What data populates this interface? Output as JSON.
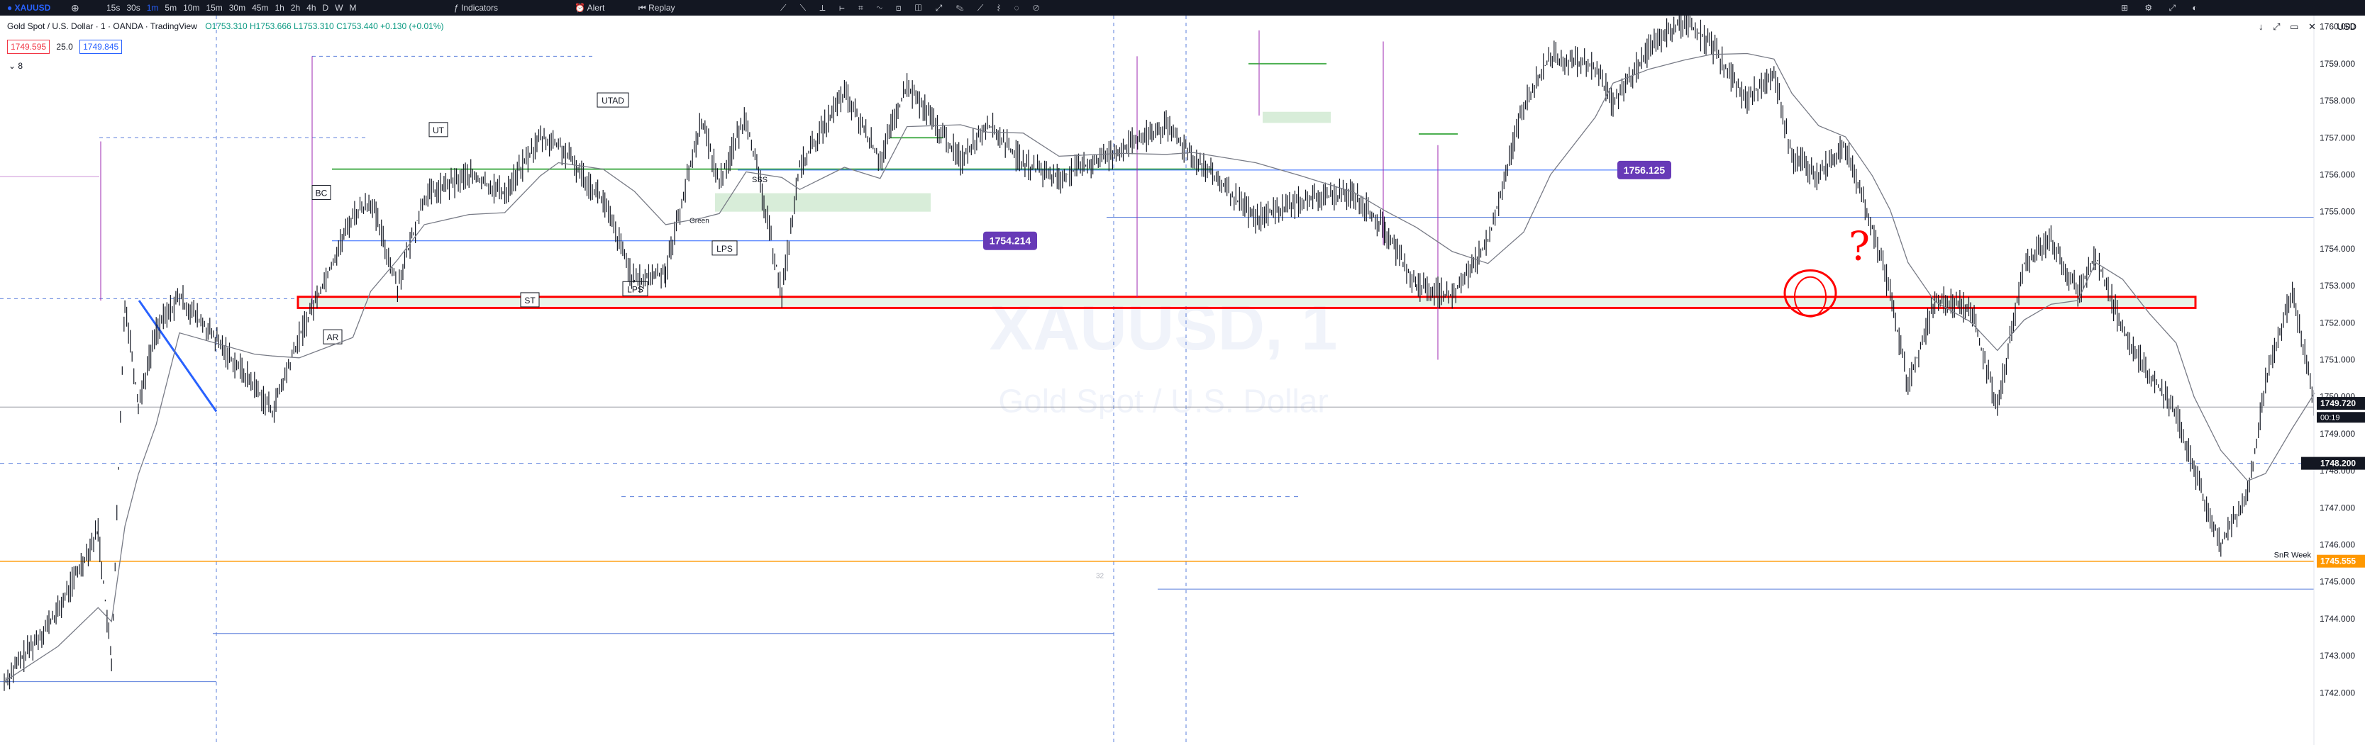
{
  "toolbar": {
    "symbol": "XAUUSD",
    "intervals": [
      "15s",
      "30s",
      "1m",
      "5m",
      "10m",
      "15m",
      "30m",
      "45m",
      "1h",
      "2h",
      "4h",
      "D",
      "W",
      "M"
    ],
    "indicators_label": "Indicators",
    "alert_label": "Alert",
    "replay_label": "Replay",
    "accent": "#2962ff"
  },
  "legend": {
    "title": "Gold Spot / U.S. Dollar · 1 · OANDA · TradingView",
    "ohlc": "O1753.310 H1753.666 L1753.310 C1753.440 +0.130 (+0.01%)",
    "bid": "1749.595",
    "spread": "25.0",
    "ask": "1749.845",
    "layers": "8"
  },
  "axis_tools": {
    "currency": "USD"
  },
  "watermark": {
    "symbol": "XAUUSD, 1",
    "name": "Gold Spot / U.S. Dollar"
  },
  "labels": {
    "ut": "UT",
    "utad": "UTAD",
    "bc": "BC",
    "ar": "AR",
    "st": "ST",
    "lps1": "LPS",
    "lps2": "LPS",
    "sss": "SSS",
    "green": "Green",
    "question": "?",
    "snr": "SnR Week",
    "small_num": "32"
  },
  "chart_data": {
    "type": "candlestick",
    "instrument": "XAUUSD",
    "interval": "1m",
    "ylim": [
      1741.5,
      1760.3
    ],
    "y_ticks": [
      1742,
      1743,
      1744,
      1745,
      1746,
      1747,
      1748,
      1749,
      1750,
      1751,
      1752,
      1753,
      1754,
      1755,
      1756,
      1757,
      1758,
      1759,
      1760
    ],
    "price_path": [
      [
        0,
        1742.3
      ],
      [
        60,
        1744.2
      ],
      [
        105,
        1746.4
      ],
      [
        120,
        1742.8
      ],
      [
        135,
        1752.6
      ],
      [
        150,
        1749.8
      ],
      [
        170,
        1751.8
      ],
      [
        196,
        1752.7
      ],
      [
        280,
        1750.3
      ],
      [
        300,
        1749.6
      ],
      [
        330,
        1751.6
      ],
      [
        390,
        1754.9
      ],
      [
        410,
        1755.3
      ],
      [
        440,
        1753.0
      ],
      [
        470,
        1755.4
      ],
      [
        520,
        1756.0
      ],
      [
        560,
        1755.5
      ],
      [
        600,
        1757.0
      ],
      [
        620,
        1756.8
      ],
      [
        670,
        1755.3
      ],
      [
        705,
        1753.1
      ],
      [
        740,
        1753.4
      ],
      [
        780,
        1757.5
      ],
      [
        800,
        1755.8
      ],
      [
        830,
        1757.6
      ],
      [
        870,
        1752.8
      ],
      [
        890,
        1756.2
      ],
      [
        940,
        1758.2
      ],
      [
        980,
        1756.4
      ],
      [
        1010,
        1758.4
      ],
      [
        1070,
        1756.4
      ],
      [
        1100,
        1757.4
      ],
      [
        1140,
        1756.3
      ],
      [
        1180,
        1755.9
      ],
      [
        1250,
        1756.7
      ],
      [
        1300,
        1757.3
      ],
      [
        1330,
        1756.5
      ],
      [
        1400,
        1754.8
      ],
      [
        1450,
        1755.3
      ],
      [
        1510,
        1755.5
      ],
      [
        1545,
        1754.5
      ],
      [
        1580,
        1753.0
      ],
      [
        1620,
        1752.7
      ],
      [
        1660,
        1754.2
      ],
      [
        1700,
        1757.9
      ],
      [
        1730,
        1759.2
      ],
      [
        1780,
        1758.9
      ],
      [
        1800,
        1757.9
      ],
      [
        1840,
        1759.4
      ],
      [
        1880,
        1760.2
      ],
      [
        1910,
        1759.5
      ],
      [
        1950,
        1758.0
      ],
      [
        1980,
        1758.8
      ],
      [
        2000,
        1756.5
      ],
      [
        2030,
        1756.0
      ],
      [
        2060,
        1756.8
      ],
      [
        2090,
        1754.6
      ],
      [
        2110,
        1752.8
      ],
      [
        2130,
        1750.3
      ],
      [
        2160,
        1752.6
      ],
      [
        2200,
        1752.4
      ],
      [
        2230,
        1749.7
      ],
      [
        2260,
        1753.6
      ],
      [
        2290,
        1754.3
      ],
      [
        2320,
        1752.8
      ],
      [
        2340,
        1753.8
      ],
      [
        2370,
        1751.8
      ],
      [
        2400,
        1750.6
      ],
      [
        2430,
        1749.6
      ],
      [
        2450,
        1748.0
      ],
      [
        2480,
        1746.0
      ],
      [
        2510,
        1747.3
      ],
      [
        2530,
        1750.4
      ],
      [
        2560,
        1752.9
      ],
      [
        2585,
        1749.8
      ]
    ],
    "levels": {
      "current_price": 1749.72,
      "countdown": "00:19",
      "dashed_price": 1748.2,
      "snr_week": 1745.555,
      "lvl_1756": 1756.125,
      "lvl_1754": 1754.214
    },
    "price_axis_labels": {
      "current": "1749.720",
      "countdown": "00:19",
      "dashed": "1748.200",
      "snr": "1745.555",
      "mid_1756": "1756.125",
      "mid_1754": "1754.214"
    },
    "zones": {
      "red_box": [
        1752.4,
        1752.7
      ],
      "green_box_main": [
        1752.45,
        1752.72
      ],
      "demand_zone": [
        1755.0,
        1755.5
      ],
      "supply_zone": [
        1757.4,
        1757.7
      ]
    },
    "colors": {
      "up": "#131722",
      "down": "#131722",
      "red": "#ff0000",
      "green": "#4caf50",
      "orange": "#ff9800",
      "purple_badge": "#673ab7",
      "blue": "#2962ff",
      "ma": "#787b86"
    }
  }
}
